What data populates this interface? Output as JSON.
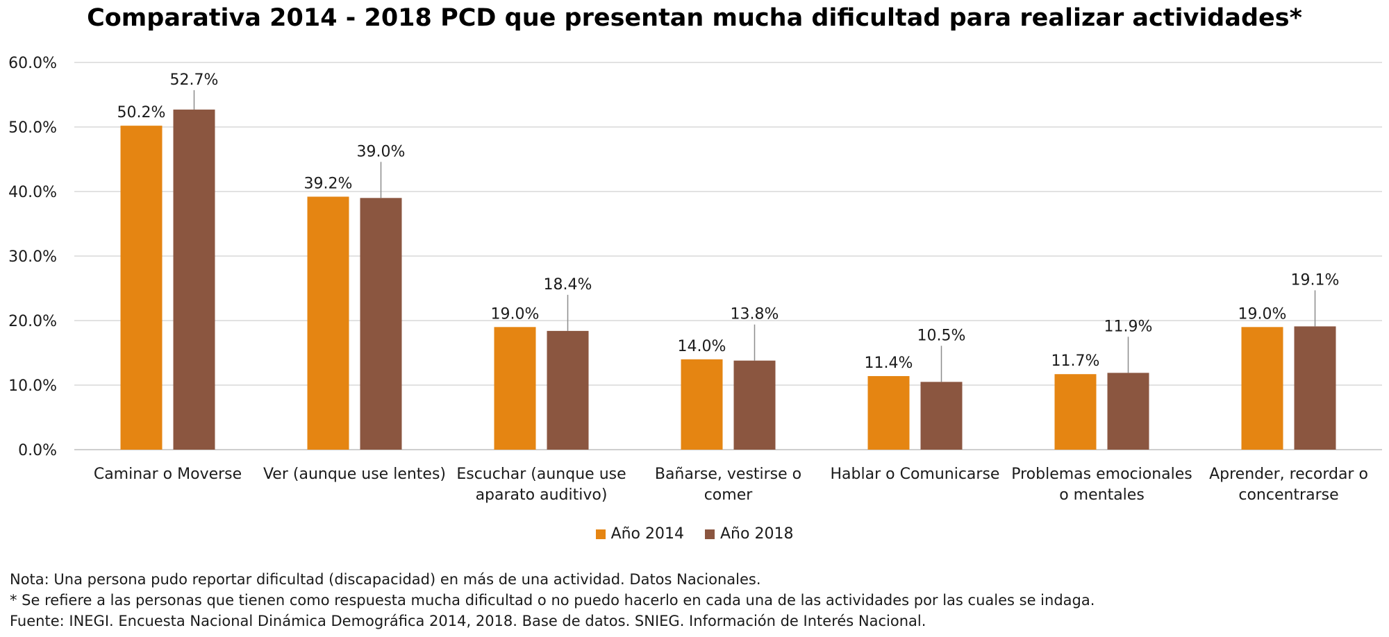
{
  "title": "Comparativa 2014 - 2018 PCD que presentan mucha dificultad para realizar actividades*",
  "chart_data": {
    "type": "bar",
    "title": "Comparativa 2014 - 2018 PCD que presentan mucha dificultad para realizar actividades*",
    "categories": [
      [
        "Caminar o Moverse"
      ],
      [
        "Ver (aunque use lentes)"
      ],
      [
        "Escuchar (aunque use",
        "aparato auditivo)"
      ],
      [
        "Bañarse, vestirse o",
        "comer"
      ],
      [
        "Hablar o Comunicarse"
      ],
      [
        "Problemas emocionales",
        "o mentales"
      ],
      [
        "Aprender, recordar o",
        "concentrarse"
      ]
    ],
    "series": [
      {
        "name": "Año 2014",
        "color": "#e58512",
        "values": [
          50.2,
          39.2,
          19.0,
          14.0,
          11.4,
          11.7,
          19.0
        ],
        "labels": [
          "50.2%",
          "39.2%",
          "19.0%",
          "14.0%",
          "11.4%",
          "11.7%",
          "19.0%"
        ]
      },
      {
        "name": "Año 2018",
        "color": "#8b5640",
        "values": [
          52.7,
          39.0,
          18.4,
          13.8,
          10.5,
          11.9,
          19.1
        ],
        "labels": [
          "52.7%",
          "39.0%",
          "18.4%",
          "13.8%",
          "10.5%",
          "11.9%",
          "19.1%"
        ]
      }
    ],
    "yticks": [
      "0.0%",
      "10.0%",
      "20.0%",
      "30.0%",
      "40.0%",
      "50.0%",
      "60.0%"
    ],
    "ylim": [
      0,
      60
    ],
    "grid": true,
    "legend": "bottom"
  },
  "notes": [
    "Nota: Una persona pudo reportar dificultad (discapacidad) en más de una actividad. Datos Nacionales.",
    "* Se refiere a las personas que tienen como respuesta mucha dificultad o no puedo hacerlo en cada una de las actividades por las cuales se indaga.",
    "Fuente: INEGI. Encuesta Nacional Dinámica Demográfica 2014, 2018. Base de datos. SNIEG. Información de Interés Nacional."
  ]
}
